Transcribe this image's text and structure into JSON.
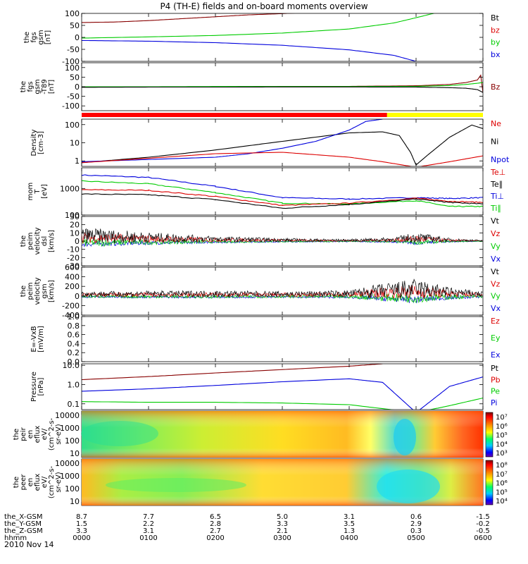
{
  "title": "P4 (TH-E) fields and on-board moments overview",
  "date_label": "2010 Nov 14",
  "colors": {
    "black": "#000000",
    "red": "#dd0000",
    "green": "#00cc00",
    "blue": "#0000dd",
    "darkred": "#880000",
    "yellow": "#ffff00"
  },
  "chart_data": [
    {
      "type": "line",
      "name": "fgs-gsm",
      "ylabel": [
        "the",
        "fgs",
        "gsm",
        "[nT]"
      ],
      "ylim": [
        -100,
        100
      ],
      "yticks": [
        "100",
        "50",
        "0",
        "-50",
        "-100"
      ],
      "ytick_values": [
        100,
        50,
        0,
        -50,
        -100
      ],
      "legend": [
        "Bt",
        "bz",
        "by",
        "bx"
      ],
      "legend_colors": [
        "black",
        "red",
        "green",
        "blue"
      ],
      "series": [
        {
          "name": "Bt",
          "color": "darkred",
          "x": [
            0,
            30,
            60,
            90,
            120,
            150,
            180,
            210
          ],
          "y": [
            62,
            64,
            70,
            78,
            86,
            94,
            99,
            105
          ]
        },
        {
          "name": "by",
          "color": "green",
          "x": [
            0,
            60,
            120,
            180,
            240,
            280,
            300,
            320,
            330
          ],
          "y": [
            -3,
            2,
            8,
            18,
            35,
            60,
            82,
            105,
            130
          ]
        },
        {
          "name": "bx",
          "color": "blue",
          "x": [
            0,
            60,
            120,
            180,
            240,
            280,
            300
          ],
          "y": [
            -13,
            -16,
            -22,
            -33,
            -52,
            -75,
            -100
          ]
        }
      ]
    },
    {
      "type": "line",
      "name": "fgs-gsm-t89",
      "ylabel": [
        "the",
        "fgs",
        "gsm",
        "-T89",
        "[nT]"
      ],
      "ylim": [
        -125,
        125
      ],
      "yticks": [
        "100",
        "50",
        "0",
        "-50",
        "-100"
      ],
      "ytick_values": [
        100,
        50,
        0,
        -50,
        -100
      ],
      "legend": [
        "Bz"
      ],
      "legend_colors": [
        "darkred"
      ],
      "series": [
        {
          "name": "Bz",
          "color": "darkred",
          "x": [
            0,
            60,
            120,
            180,
            240,
            300,
            330,
            345,
            355,
            358,
            360
          ],
          "y": [
            -2,
            -1,
            0,
            1,
            2,
            5,
            12,
            22,
            35,
            60,
            -30
          ]
        },
        {
          "name": "By",
          "color": "green",
          "x": [
            0,
            60,
            120,
            180,
            240,
            300,
            330,
            345,
            355,
            360
          ],
          "y": [
            0,
            0,
            1,
            1,
            1,
            2,
            6,
            12,
            18,
            22
          ]
        },
        {
          "name": "Bx",
          "color": "black",
          "x": [
            0,
            60,
            120,
            180,
            240,
            300,
            330,
            345,
            355,
            360
          ],
          "y": [
            -3,
            -2,
            -2,
            -1,
            -1,
            -2,
            -5,
            -8,
            -15,
            -30
          ]
        }
      ]
    },
    {
      "type": "line",
      "name": "density",
      "scale": "log",
      "ylabel": [
        "Density",
        "[cm-3]"
      ],
      "ylim": [
        0.5,
        200
      ],
      "yticks": [
        "100",
        "10",
        "1"
      ],
      "ytick_values": [
        100,
        10,
        1
      ],
      "legend": [
        "Ne",
        "Ni",
        "Npot"
      ],
      "legend_colors": [
        "red",
        "black",
        "blue"
      ],
      "series": [
        {
          "name": "Ni",
          "color": "black",
          "x": [
            0,
            60,
            120,
            180,
            240,
            270,
            285,
            295,
            300,
            310,
            330,
            350,
            360
          ],
          "y": [
            0.8,
            1.6,
            4,
            12,
            35,
            40,
            25,
            3,
            0.6,
            2,
            20,
            95,
            60
          ]
        },
        {
          "name": "Npot",
          "color": "blue",
          "x": [
            0,
            60,
            120,
            150,
            180,
            210,
            240,
            255,
            270
          ],
          "y": [
            0.9,
            1.2,
            1.6,
            2.5,
            5,
            12,
            50,
            150,
            200
          ]
        },
        {
          "name": "Ne",
          "color": "red",
          "x": [
            0,
            60,
            120,
            180,
            240,
            270,
            300,
            330,
            360
          ],
          "y": [
            0.8,
            1.4,
            2.5,
            3,
            1.6,
            0.9,
            0.45,
            0.9,
            1.9
          ]
        }
      ]
    },
    {
      "type": "line",
      "name": "temperature",
      "scale": "log",
      "ylabel": [
        "mom",
        "T",
        "[eV]"
      ],
      "ylim": [
        100,
        6000
      ],
      "yticks": [
        "1000",
        "100"
      ],
      "ytick_values": [
        1000,
        100
      ],
      "legend": [
        "Te⊥",
        "Te∥",
        "Ti⊥",
        "Ti∥"
      ],
      "legend_colors": [
        "red",
        "black",
        "blue",
        "green"
      ],
      "series": [
        {
          "name": "Ti⊥",
          "color": "blue",
          "x": [
            0,
            60,
            120,
            180,
            240,
            300,
            330,
            360
          ],
          "y": [
            3200,
            2600,
            1200,
            450,
            400,
            450,
            420,
            450
          ]
        },
        {
          "name": "Ti∥",
          "color": "green",
          "x": [
            0,
            60,
            120,
            180,
            240,
            300,
            330,
            360
          ],
          "y": [
            1900,
            1500,
            700,
            280,
            260,
            350,
            210,
            210
          ]
        },
        {
          "name": "Te⊥",
          "color": "red",
          "x": [
            0,
            60,
            120,
            180,
            240,
            300,
            330,
            360
          ],
          "y": [
            900,
            850,
            500,
            230,
            280,
            430,
            330,
            300
          ]
        },
        {
          "name": "Te∥",
          "color": "black",
          "x": [
            0,
            60,
            120,
            180,
            240,
            300,
            330,
            360
          ],
          "y": [
            620,
            580,
            380,
            180,
            250,
            400,
            300,
            260
          ]
        }
      ]
    },
    {
      "type": "line",
      "name": "peim-velocity-dsl",
      "ylabel": [
        "the",
        "peim",
        "velocity",
        "dsl",
        "[km/s]"
      ],
      "ylim": [
        -30,
        30
      ],
      "yticks": [
        "30",
        "20",
        "10",
        "0",
        "-10",
        "-20",
        "-30"
      ],
      "ytick_values": [
        30,
        20,
        10,
        0,
        -10,
        -20,
        -30
      ],
      "legend": [
        "Vt",
        "Vz",
        "Vy",
        "Vx"
      ],
      "legend_colors": [
        "black",
        "red",
        "green",
        "blue"
      ],
      "series": [
        {
          "name": "Vt",
          "color": "black",
          "x": [
            0,
            60,
            120,
            180,
            240,
            280,
            300,
            330,
            360
          ],
          "y": [
            14,
            9,
            5,
            3,
            2,
            4,
            9,
            3,
            1
          ]
        }
      ]
    },
    {
      "type": "line",
      "name": "peim-velocity-gsm",
      "ylabel": [
        "the",
        "peim",
        "velocity",
        "gsm",
        "[km/s]"
      ],
      "ylim": [
        -400,
        600
      ],
      "yticks": [
        "600",
        "400",
        "200",
        "0",
        "-200",
        "-400"
      ],
      "ytick_values": [
        600,
        400,
        200,
        0,
        -200,
        -400
      ],
      "legend": [
        "Vt",
        "Vz",
        "Vy",
        "Vx"
      ],
      "legend_colors": [
        "black",
        "red",
        "green",
        "blue"
      ],
      "series": [
        {
          "name": "Vt",
          "color": "black",
          "x": [
            0,
            60,
            120,
            180,
            240,
            270,
            300,
            330,
            360
          ],
          "y": [
            80,
            90,
            95,
            80,
            100,
            220,
            300,
            150,
            80
          ]
        }
      ]
    },
    {
      "type": "line",
      "name": "e-vxb",
      "ylabel": [
        "E=-VxB",
        "[mV/m]"
      ],
      "ylim": [
        0,
        1
      ],
      "yticks": [
        "1.0",
        "0.8",
        "0.6",
        "0.4",
        "0.2",
        "0.0"
      ],
      "ytick_values": [
        1.0,
        0.8,
        0.6,
        0.4,
        0.2,
        0.0
      ],
      "legend": [
        "Ez",
        "Ey",
        "Ex"
      ],
      "legend_colors": [
        "red",
        "green",
        "blue"
      ],
      "series": []
    },
    {
      "type": "line",
      "name": "pressure",
      "scale": "log",
      "ylabel": [
        "Pressure",
        "[nPa]"
      ],
      "ylim": [
        0.05,
        12
      ],
      "yticks": [
        "10.0",
        "1.0",
        "0.1"
      ],
      "ytick_values": [
        10,
        1,
        0.1
      ],
      "legend": [
        "Pt",
        "Pb",
        "Pe",
        "Pi"
      ],
      "legend_colors": [
        "black",
        "red",
        "green",
        "blue"
      ],
      "series": [
        {
          "name": "Pt",
          "color": "darkred",
          "x": [
            0,
            60,
            120,
            180,
            240,
            270
          ],
          "y": [
            1.8,
            2.6,
            4,
            6,
            9,
            12
          ]
        },
        {
          "name": "Pi",
          "color": "blue",
          "x": [
            0,
            60,
            120,
            180,
            240,
            270,
            300,
            330,
            360
          ],
          "y": [
            0.45,
            0.6,
            0.9,
            1.4,
            2,
            1.3,
            0.035,
            0.8,
            2.5
          ]
        },
        {
          "name": "Pe",
          "color": "green",
          "x": [
            0,
            60,
            120,
            180,
            240,
            300,
            330,
            360
          ],
          "y": [
            0.13,
            0.12,
            0.12,
            0.11,
            0.09,
            0.035,
            0.08,
            0.2
          ]
        }
      ]
    },
    {
      "type": "heatmap",
      "name": "peir-en-eflux",
      "ylabel": [
        "the",
        "peir",
        "en",
        "eflux",
        "eV/",
        "(cm^2-s-",
        "sr-eV)"
      ],
      "yticks": [
        "10000",
        "1000",
        "100",
        "10"
      ],
      "colorbar_ticks": [
        "10⁷",
        "10⁶",
        "10⁵",
        "10⁴",
        "10³"
      ]
    },
    {
      "type": "heatmap",
      "name": "peer-en-eflux",
      "ylabel": [
        "the",
        "peer",
        "en",
        "eflux",
        "eV/",
        "(cm^2-s-",
        "sr-eV)"
      ],
      "yticks": [
        "10000",
        "1000",
        "100",
        "10"
      ],
      "colorbar_ticks": [
        "10⁸",
        "10⁷",
        "10⁶",
        "10⁵",
        "10⁴"
      ]
    }
  ],
  "mode_bar": {
    "red_until": 274,
    "end": 360
  },
  "x_axis": {
    "range": [
      0,
      360
    ],
    "tick_values": [
      0,
      60,
      120,
      180,
      240,
      300,
      360
    ],
    "rows": [
      {
        "label": "the_X-GSM",
        "values": [
          "8.7",
          "7.7",
          "6.5",
          "5.0",
          "3.1",
          "0.6",
          "-1.5"
        ]
      },
      {
        "label": "the_Y-GSM",
        "values": [
          "1.5",
          "2.2",
          "2.8",
          "3.3",
          "3.5",
          "2.9",
          "-0.2"
        ]
      },
      {
        "label": "the_Z-GSM",
        "values": [
          "3.3",
          "3.1",
          "2.7",
          "2.1",
          "1.3",
          "0.3",
          "-0.5"
        ]
      },
      {
        "label": "hhmm",
        "values": [
          "0000",
          "0100",
          "0200",
          "0300",
          "0400",
          "0500",
          "0600"
        ]
      }
    ]
  }
}
